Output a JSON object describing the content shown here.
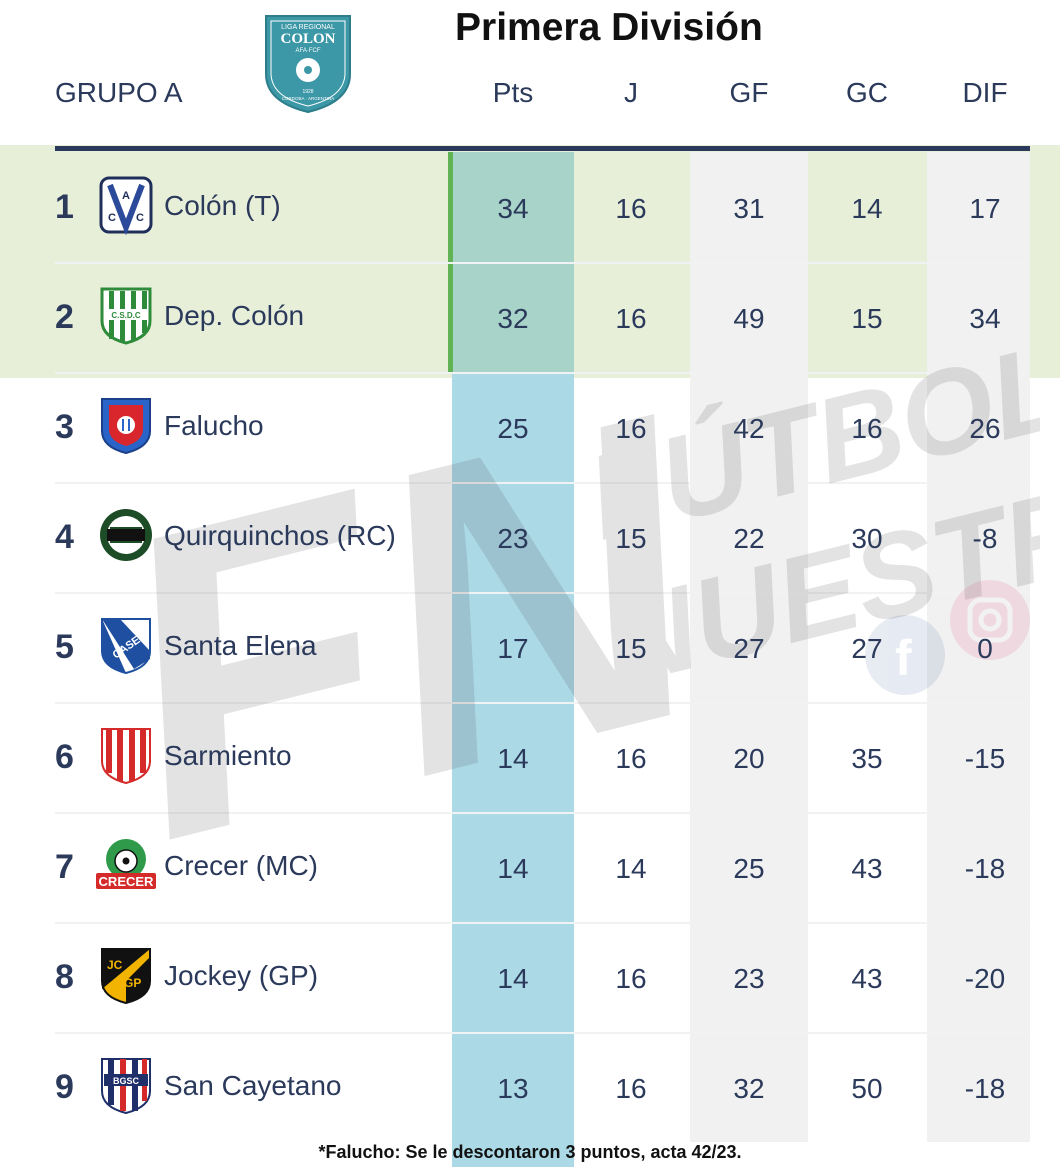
{
  "header": {
    "title": "Primera División",
    "group": "GRUPO A",
    "league_logo_text": [
      "LIGA REGIONAL",
      "COLON",
      "AFA·FCF",
      "CORDOBA · ARGENTINA",
      "1928"
    ]
  },
  "columns": [
    "Pts",
    "J",
    "GF",
    "GC",
    "DIF"
  ],
  "rows": [
    {
      "rank": "1",
      "team": "Colón (T)",
      "pts": "34",
      "j": "16",
      "gf": "31",
      "gc": "14",
      "dif": "17"
    },
    {
      "rank": "2",
      "team": "Dep. Colón",
      "pts": "32",
      "j": "16",
      "gf": "49",
      "gc": "15",
      "dif": "34"
    },
    {
      "rank": "3",
      "team": "Falucho",
      "pts": "25",
      "j": "16",
      "gf": "42",
      "gc": "16",
      "dif": "26"
    },
    {
      "rank": "4",
      "team": "Quirquinchos (RC)",
      "pts": "23",
      "j": "15",
      "gf": "22",
      "gc": "30",
      "dif": "-8"
    },
    {
      "rank": "5",
      "team": "Santa Elena",
      "pts": "17",
      "j": "15",
      "gf": "27",
      "gc": "27",
      "dif": "0"
    },
    {
      "rank": "6",
      "team": "Sarmiento",
      "pts": "14",
      "j": "16",
      "gf": "20",
      "gc": "35",
      "dif": "-15"
    },
    {
      "rank": "7",
      "team": "Crecer (MC)",
      "pts": "14",
      "j": "14",
      "gf": "25",
      "gc": "43",
      "dif": "-18"
    },
    {
      "rank": "8",
      "team": "Jockey (GP)",
      "pts": "14",
      "j": "16",
      "gf": "23",
      "gc": "43",
      "dif": "-20"
    },
    {
      "rank": "9",
      "team": "San Cayetano",
      "pts": "13",
      "j": "16",
      "gf": "32",
      "gc": "50",
      "dif": "-18"
    }
  ],
  "crest_text": {
    "colon_t": "CAC",
    "dep_colon": "C.S.D.C",
    "santa_elena": "CASE",
    "crecer": "CRECER",
    "jockey": [
      "JC",
      "GP"
    ],
    "san_cayetano": "BGSC"
  },
  "watermark": {
    "mark": "FN",
    "line1": "FÚTBOL",
    "line2": "NUESTRO"
  },
  "footnote": "*Falucho: Se le descontaron 3 puntos, acta 42/23.",
  "colors": {
    "navy": "#2b3a5b",
    "band": "#e8efd9",
    "pts_column": "#acd9e6",
    "accent_green": "#62b356",
    "league_teal": "#3c97a6"
  },
  "icons": [
    "league-logo-icon",
    "facebook-icon",
    "instagram-icon"
  ]
}
